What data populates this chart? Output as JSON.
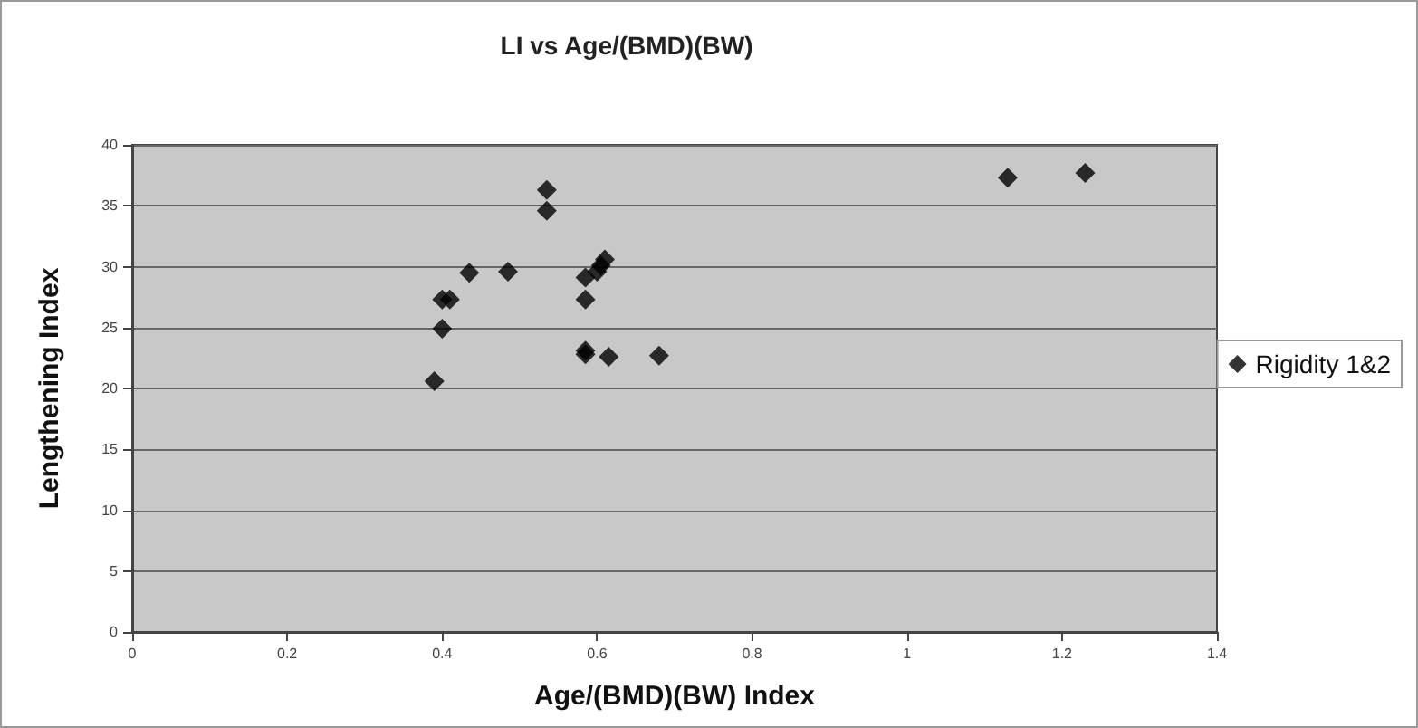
{
  "chart_data": {
    "type": "scatter",
    "title": "LI vs Age/(BMD)(BW)",
    "xlabel": "Age/(BMD)(BW) Index",
    "ylabel": "Lengthening Index",
    "series": [
      {
        "name": "Rigidity 1&2",
        "color": "#000000",
        "x": [
          0.39,
          0.4,
          0.4,
          0.41,
          0.435,
          0.485,
          0.535,
          0.535,
          0.585,
          0.585,
          0.585,
          0.585,
          0.6,
          0.605,
          0.61,
          0.615,
          0.68,
          1.13,
          1.23
        ],
        "values": [
          20.6,
          24.9,
          27.3,
          27.3,
          29.5,
          29.6,
          36.3,
          34.6,
          29.1,
          27.3,
          23.1,
          22.8,
          29.6,
          30.1,
          30.6,
          22.6,
          22.7,
          37.3,
          37.7
        ]
      }
    ],
    "xlim": [
      0,
      1.4
    ],
    "xticks": [
      0,
      0.2,
      0.4,
      0.6,
      0.8,
      1,
      1.2,
      1.4
    ],
    "ylim": [
      0,
      40
    ],
    "yticks": [
      0,
      5,
      10,
      15,
      20,
      25,
      30,
      35,
      40
    ],
    "grid": "y",
    "legend": "right",
    "marker": "diamond"
  }
}
